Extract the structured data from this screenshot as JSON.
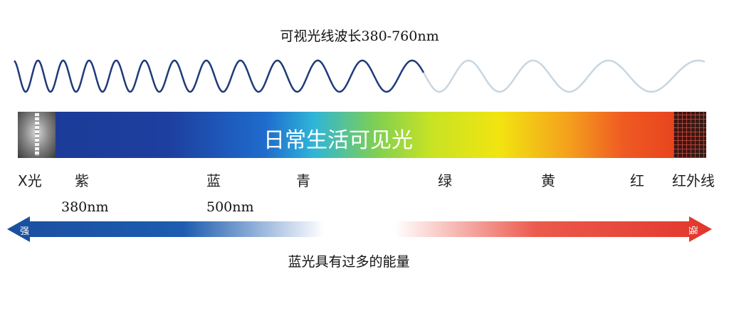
{
  "title": "可视光线波长380-760nm",
  "spectrum_bar": {
    "label": "日常生活可见光"
  },
  "band_labels": [
    "X光",
    "紫",
    "蓝",
    "青",
    "绿",
    "黄",
    "红",
    "红外线"
  ],
  "wavelength_labels": [
    "380nm",
    "500nm"
  ],
  "arrow": {
    "left_label": "强",
    "right_label": "强"
  },
  "caption": "蓝光具有过多的能量",
  "colors": {
    "wave_dark": "#1f3a7a",
    "wave_light": "#c8d6e0",
    "arrow_blue": "#1a4fa0",
    "arrow_red": "#e43a2e"
  }
}
